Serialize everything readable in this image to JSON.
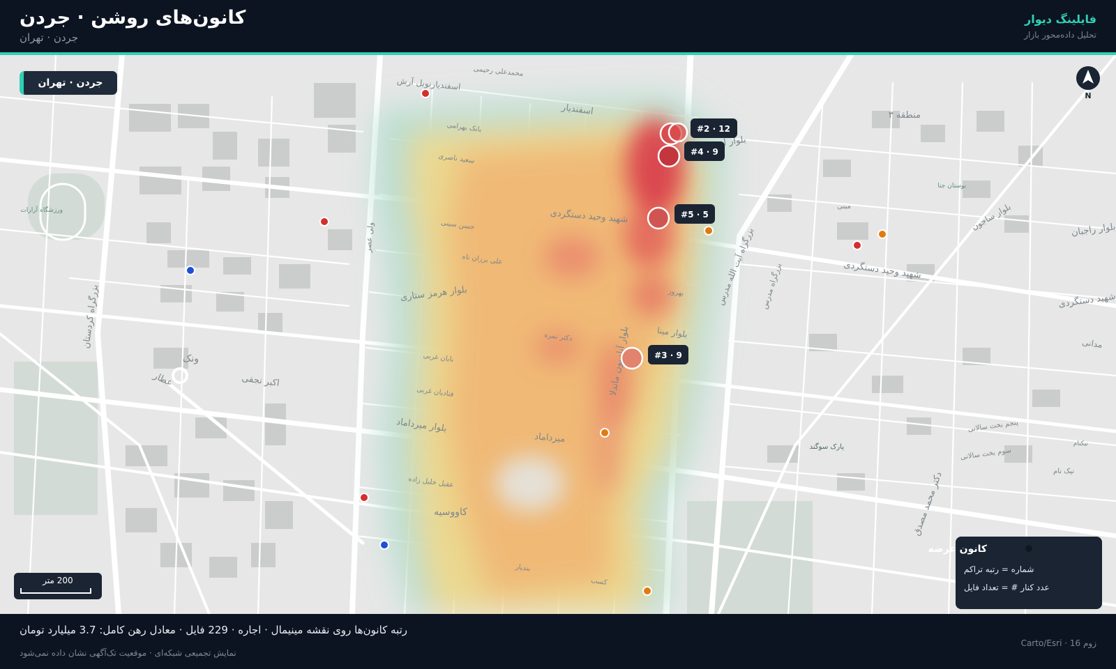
{
  "header": {
    "title": "کانون‌های روشن · جردن",
    "subtitle": "جردن · تهران",
    "brand": "فایلینگ دیوار",
    "brand_tagline": "تحلیل داده‌محور بازار"
  },
  "map": {
    "location_chip": "جردن · تهران",
    "north_label": "N",
    "scale_label": "200 متر",
    "hotspots": [
      {
        "rank": 2,
        "count": 12,
        "label": "#2 · 12"
      },
      {
        "rank": 4,
        "count": 9,
        "label": "#4 · 9"
      },
      {
        "rank": 5,
        "count": 5,
        "label": "#5 · 5"
      },
      {
        "rank": 3,
        "count": 9,
        "label": "#3 · 9"
      }
    ],
    "street_labels": [
      "اسفندیار",
      "اسفندیارنوبل آرش",
      "محمدعلی رحیمی",
      "بلوار آرش",
      "بانک بهرامی",
      "سعید ناصری",
      "حسن سینی",
      "شهید وحید دستگردی",
      "بلوار هرمز ستاری",
      "علی برزان ناه",
      "دکتر نمره",
      "بلوار آنلسون ماندلا",
      "بلوار مینا",
      "نابان غربی",
      "فنادیان غربی",
      "بلوار میرداماد",
      "میرداماد",
      "کاووسیه",
      "عقیل خلیل زاده",
      "بزرگراه مدرس",
      "بزرگراه آیت الله مدرس",
      "ونک",
      "اکبر نجفی",
      "عطار",
      "ورزشگاه آرارات",
      "بزرگراه کردستان",
      "منطقه ۳",
      "بوستان جنا",
      "نیکنام",
      "بلوار ساجون",
      "پارک سوگند",
      "دکتر محمد مصدق",
      "ولی عصر",
      "مدانی",
      "سوم بخت سالانی",
      "پنجم بخت سالانی",
      "شهید دستگردی",
      "مبنی",
      "بلوار راجبان",
      "نیک نام",
      "بندیار",
      "کسب",
      "شهید وحید دستگردی",
      "بهروز"
    ]
  },
  "legend": {
    "title": "کانون عرضه",
    "line1": "شماره = رتبه تراکم",
    "line2": "عدد کنار # = تعداد فایل"
  },
  "footer": {
    "stats": "رتبه کانون‌ها روی نقشه مینیمال · اجاره · 229 فایل · معادل رهن کامل: 3.7 میلیارد تومان",
    "disclaimer": "نمایش تجمیعی شبکه‌ای · موقعیت تک‌آگهی نشان داده نمی‌شود",
    "attribution": "زوم 16 · Carto/Esri"
  },
  "colors": {
    "accent": "#2fd1b5",
    "dark_bg": "#0d1421",
    "panel": "#1a2433",
    "listing_red": "#d32f2f",
    "listing_orange": "#e07b12",
    "listing_blue": "#1e4fd8"
  }
}
